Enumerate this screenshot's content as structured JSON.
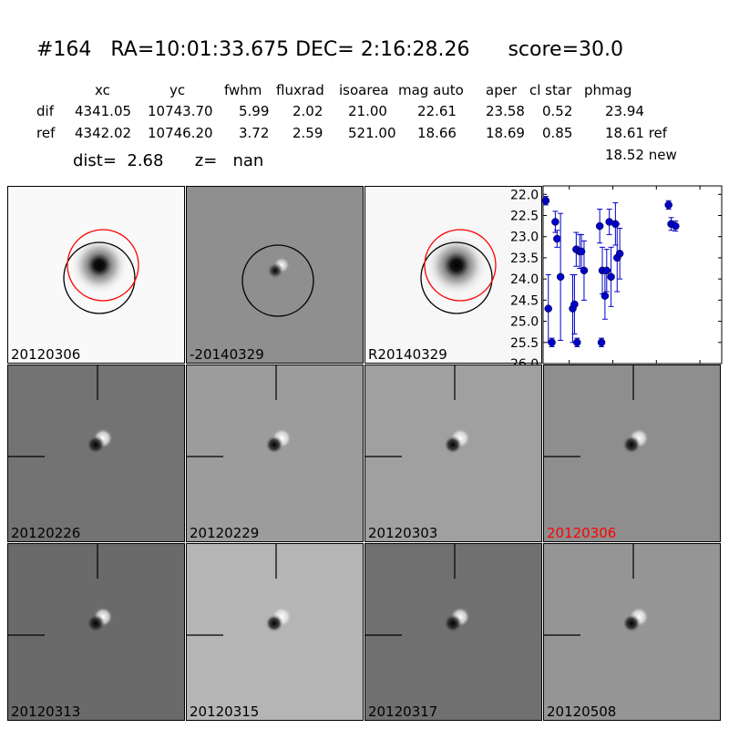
{
  "header": {
    "title": "#164   RA=10:01:33.675 DEC= 2:16:28.26      score=30.0",
    "columns": [
      "xc",
      "yc",
      "fwhm",
      "fluxrad",
      "isoarea",
      "mag auto",
      "aper",
      "cl star",
      "phmag"
    ],
    "rows": [
      {
        "label": "dif",
        "values": [
          "4341.05",
          "10743.70",
          "5.99",
          "2.02",
          "21.00",
          "22.61",
          "23.58",
          "0.52",
          "23.94"
        ]
      },
      {
        "label": "ref",
        "values": [
          "4342.02",
          "10746.20",
          "3.72",
          "2.59",
          "521.00",
          "18.66",
          "18.69",
          "0.85",
          "18.61 ref"
        ]
      }
    ],
    "dist_text": "dist=  2.68      z=   nan",
    "extra_mag": "18.52 new"
  },
  "stamps": {
    "top": [
      {
        "label": "20120306",
        "bg": "#f9f9f9"
      },
      {
        "label": "-20140329",
        "bg": "#8f8f8f"
      },
      {
        "label": "R20140329",
        "bg": "#f7f7f7"
      }
    ],
    "grid": [
      {
        "label": "20120226",
        "bg": "#737373",
        "label_color": "#000000"
      },
      {
        "label": "20120229",
        "bg": "#9c9c9c",
        "label_color": "#000000"
      },
      {
        "label": "20120303",
        "bg": "#a0a0a0",
        "label_color": "#000000"
      },
      {
        "label": "20120306",
        "bg": "#8e8e8e",
        "label_color": "#ff0000"
      },
      {
        "label": "20120313",
        "bg": "#6a6a6a",
        "label_color": "#000000"
      },
      {
        "label": "20120315",
        "bg": "#b5b5b5",
        "label_color": "#000000"
      },
      {
        "label": "20120317",
        "bg": "#707070",
        "label_color": "#000000"
      },
      {
        "label": "20120508",
        "bg": "#959595",
        "label_color": "#000000"
      }
    ]
  },
  "chart_data": {
    "type": "scatter",
    "title": "",
    "xlabel": "",
    "ylabel": "",
    "xlim": [
      -80,
      125
    ],
    "ylim": [
      26.0,
      21.8
    ],
    "y_inverted": true,
    "xticks": [
      "-50",
      "0",
      "50",
      "100"
    ],
    "xtick_values": [
      -50,
      0,
      50,
      100
    ],
    "yticks": [
      "22.0",
      "22.5",
      "23.0",
      "23.5",
      "24.0",
      "24.5",
      "25.0",
      "25.5",
      "26.0"
    ],
    "ytick_values": [
      22.0,
      22.5,
      23.0,
      23.5,
      24.0,
      24.5,
      25.0,
      25.5,
      26.0
    ],
    "marker_color": "#0000cc",
    "points": [
      {
        "x": -77,
        "y": 22.15,
        "err": 0.1
      },
      {
        "x": -74,
        "y": 24.7,
        "err": 0.8
      },
      {
        "x": -70,
        "y": 25.5,
        "err": 0.1
      },
      {
        "x": -66,
        "y": 22.65,
        "err": 0.25
      },
      {
        "x": -64,
        "y": 23.05,
        "err": 0.2
      },
      {
        "x": -60,
        "y": 23.95,
        "err": 1.5
      },
      {
        "x": -46,
        "y": 24.7,
        "err": 0.8
      },
      {
        "x": -44,
        "y": 24.6,
        "err": 0.7
      },
      {
        "x": -42,
        "y": 23.3,
        "err": 0.4
      },
      {
        "x": -41,
        "y": 25.5,
        "err": 0.1
      },
      {
        "x": -38,
        "y": 23.35,
        "err": 0.4
      },
      {
        "x": -36,
        "y": 23.35,
        "err": 0.4
      },
      {
        "x": -33,
        "y": 23.8,
        "err": 0.7
      },
      {
        "x": -15,
        "y": 22.75,
        "err": 0.4
      },
      {
        "x": -13,
        "y": 25.5,
        "err": 0.1
      },
      {
        "x": -12,
        "y": 23.8,
        "err": 0.55
      },
      {
        "x": -9,
        "y": 24.4,
        "err": 0.55
      },
      {
        "x": -7,
        "y": 23.8,
        "err": 0.5
      },
      {
        "x": -4,
        "y": 22.65,
        "err": 0.3
      },
      {
        "x": -2,
        "y": 23.95,
        "err": 0.7
      },
      {
        "x": 3,
        "y": 22.7,
        "err": 0.5
      },
      {
        "x": 5,
        "y": 23.5,
        "err": 0.8
      },
      {
        "x": 8,
        "y": 23.4,
        "err": 0.6
      },
      {
        "x": 64,
        "y": 22.25,
        "err": 0.1
      },
      {
        "x": 67,
        "y": 22.7,
        "err": 0.15
      },
      {
        "x": 72,
        "y": 22.75,
        "err": 0.12
      }
    ]
  }
}
